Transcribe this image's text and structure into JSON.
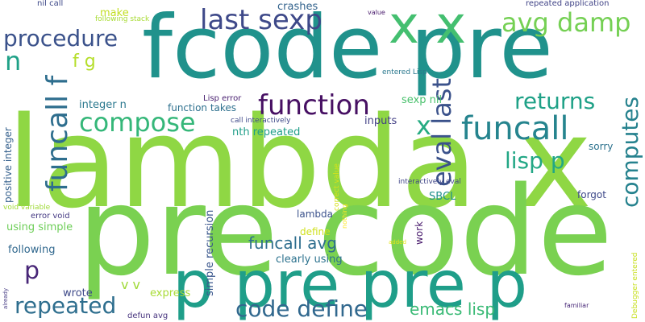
{
  "words": [
    {
      "text": "lambda x",
      "color": "#8fd744"
    },
    {
      "text": "pre code",
      "color": "#7ad151"
    },
    {
      "text": "fcode pre",
      "color": "#20928c"
    },
    {
      "text": "p pre pre p",
      "color": "#1f9e89"
    },
    {
      "text": "x x",
      "color": "#44bf70"
    },
    {
      "text": "funcall",
      "color": "#25848e"
    },
    {
      "text": "funcall f",
      "color": "#2e6e8e"
    },
    {
      "text": "function",
      "color": "#471063"
    },
    {
      "text": "last sexp",
      "color": "#3e4989"
    },
    {
      "text": "avg damp",
      "color": "#75d054"
    },
    {
      "text": "procedure",
      "color": "#3b528b"
    },
    {
      "text": "compose",
      "color": "#35b779"
    },
    {
      "text": "repeated",
      "color": "#2e6e8e"
    },
    {
      "text": "code define",
      "color": "#31688e"
    },
    {
      "text": "eval last",
      "color": "#3b528b"
    },
    {
      "text": "returns",
      "color": "#1fa187"
    },
    {
      "text": "lisp p",
      "color": "#22a785"
    },
    {
      "text": "computes",
      "color": "#26828e"
    },
    {
      "text": "funcall avg",
      "color": "#2e6e8e"
    },
    {
      "text": "emacs lisp",
      "color": "#3aba76"
    },
    {
      "text": "n",
      "color": "#1fa187"
    },
    {
      "text": "f g",
      "color": "#b5de2b"
    },
    {
      "text": "x",
      "color": "#25ab82"
    },
    {
      "text": "p",
      "color": "#482677"
    },
    {
      "text": "v v",
      "color": "#a0da39"
    },
    {
      "text": "crashes",
      "color": "#33638d"
    },
    {
      "text": "make",
      "color": "#c2df23"
    },
    {
      "text": "repeated application",
      "color": "#414487"
    },
    {
      "text": "value",
      "color": "#481a6c"
    },
    {
      "text": "nil call",
      "color": "#3e4989"
    },
    {
      "text": "following stack",
      "color": "#a8db34"
    },
    {
      "text": "entered Lisp",
      "color": "#2a788e"
    },
    {
      "text": "integer n",
      "color": "#2a788e"
    },
    {
      "text": "function takes",
      "color": "#2d708e"
    },
    {
      "text": "Lisp error",
      "color": "#481f70"
    },
    {
      "text": "call interactively",
      "color": "#3e4989"
    },
    {
      "text": "nth repeated",
      "color": "#1f9e89"
    },
    {
      "text": "sexp nil",
      "color": "#4ac16d"
    },
    {
      "text": "inputs",
      "color": "#423f85"
    },
    {
      "text": "sorry",
      "color": "#2c728e"
    },
    {
      "text": "interactively eval",
      "color": "#404688"
    },
    {
      "text": "SBCL",
      "color": "#21918c"
    },
    {
      "text": "forgot",
      "color": "#3e4989"
    },
    {
      "text": "lambda",
      "color": "#3b528b"
    },
    {
      "text": "define",
      "color": "#d0e11c"
    },
    {
      "text": "using simple",
      "color": "#6ece58"
    },
    {
      "text": "clearly using",
      "color": "#2c728e"
    },
    {
      "text": "following",
      "color": "#31688e"
    },
    {
      "text": "wrote",
      "color": "#3e4989"
    },
    {
      "text": "express",
      "color": "#a8db34"
    },
    {
      "text": "defun avg",
      "color": "#46337e"
    },
    {
      "text": "familiar",
      "color": "#482878"
    },
    {
      "text": "error void",
      "color": "#443983"
    },
    {
      "text": "positive integer",
      "color": "#35608d"
    },
    {
      "text": "void variable",
      "color": "#a0da39"
    },
    {
      "text": "simple recursion",
      "color": "#39568c"
    },
    {
      "text": "work",
      "color": "#481a6c"
    },
    {
      "text": "correct value",
      "color": "#d8e219"
    },
    {
      "text": "nothing",
      "color": "#fde725"
    },
    {
      "text": "added",
      "color": "#e5e419"
    },
    {
      "text": "already",
      "color": "#443a83"
    },
    {
      "text": "Debugger entered",
      "color": "#c8e020"
    }
  ]
}
